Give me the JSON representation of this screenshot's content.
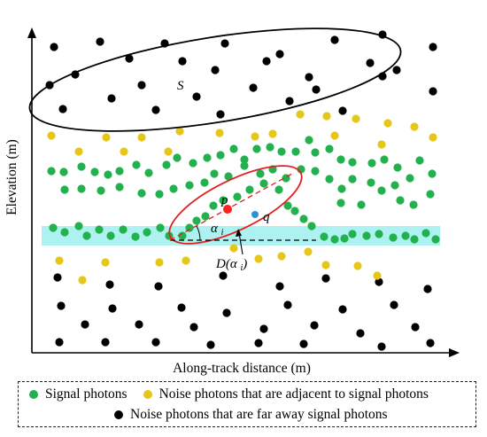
{
  "axes": {
    "xlabel": "Along-track distance  (m)",
    "ylabel": "Elevation (m)"
  },
  "annotations": {
    "region_s": "S",
    "point_p": "p",
    "point_q": "q",
    "angle": "αi",
    "ellipse_label": "D(αi)"
  },
  "legend": {
    "signal": "Signal photons",
    "noise_adjacent": "Noise photons  that are adjacent to signal photons",
    "noise_far": "Noise photons  that are far away signal photons"
  },
  "colors": {
    "signal": "#22b14c",
    "noise_adjacent": "#e6c619",
    "noise_far": "#000000",
    "ellipse_d": "#e02020",
    "point_p": "#ff2020",
    "point_q": "#2f8fd8",
    "band": "#9ff0ee"
  }
}
